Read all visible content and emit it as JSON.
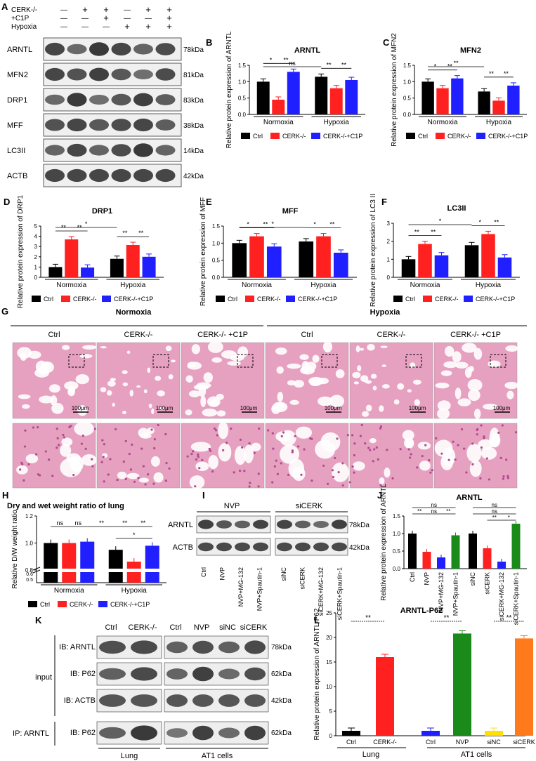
{
  "colors": {
    "ctrl": "#000000",
    "cerk": "#ff2020",
    "c1p": "#1f1fff",
    "nvp": "#1a8a1a",
    "siCERK": "#ff7a1a",
    "band": "#2a2a2a",
    "tissue": "#e6a0c0",
    "tissue_dark": "#b04b8e"
  },
  "panel_A": {
    "letter": "A",
    "conditions": [
      {
        "label": "CERK-/-",
        "marks": [
          "—",
          "+",
          "+",
          "—",
          "+",
          "+"
        ]
      },
      {
        "label": "+C1P",
        "marks": [
          "—",
          "—",
          "+",
          "—",
          "—",
          "+"
        ]
      },
      {
        "label": "Hypoxia",
        "marks": [
          "—",
          "—",
          "—",
          "+",
          "+",
          "+"
        ]
      }
    ],
    "blots": [
      {
        "name": "ARNTL",
        "kda": "78kDa",
        "levels": [
          0.85,
          0.55,
          0.95,
          0.85,
          0.6,
          0.8
        ]
      },
      {
        "name": "MFN2",
        "kda": "81kDa",
        "levels": [
          0.85,
          0.75,
          0.9,
          0.7,
          0.5,
          0.8
        ]
      },
      {
        "name": "DRP1",
        "kda": "83kDa",
        "levels": [
          0.55,
          0.95,
          0.5,
          0.7,
          0.9,
          0.65
        ]
      },
      {
        "name": "MFF",
        "kda": "38kDa",
        "levels": [
          0.75,
          0.85,
          0.7,
          0.8,
          0.85,
          0.65
        ]
      },
      {
        "name": "LC3II",
        "kda": "14kDa",
        "levels": [
          0.6,
          0.85,
          0.6,
          0.8,
          0.95,
          0.6
        ]
      },
      {
        "name": "ACTB",
        "kda": "42kDa",
        "levels": [
          0.85,
          0.85,
          0.85,
          0.85,
          0.85,
          0.85
        ]
      }
    ]
  },
  "legend_ABC": {
    "ctrl": "Ctrl",
    "cerk": "CERK-/-",
    "c1p": "CERK-/-+C1P"
  },
  "chart_data": [
    {
      "panel": "B",
      "type": "bar",
      "title": "ARNTL",
      "ylabel": "Relative protein expression of ARNTL",
      "groups": [
        "Normoxia",
        "Hypoxia"
      ],
      "ylim": [
        0,
        1.5
      ],
      "yticks": [
        "0.0",
        "0.5",
        "1.0",
        "1.5"
      ],
      "series": [
        {
          "name": "Ctrl",
          "values": [
            1.0,
            1.15
          ]
        },
        {
          "name": "CERK-/-",
          "values": [
            0.45,
            0.8
          ]
        },
        {
          "name": "CERK-/-+C1P",
          "values": [
            1.3,
            1.05
          ]
        }
      ],
      "sig": [
        {
          "g": 0,
          "a": 0,
          "b": 1,
          "t": "*",
          "lvl": 0
        },
        {
          "g": 0,
          "a": 1,
          "b": 2,
          "t": "**",
          "lvl": 0
        },
        {
          "g": 1,
          "a": 0,
          "b": 1,
          "t": "**",
          "lvl": 0
        },
        {
          "g": 1,
          "a": 1,
          "b": 2,
          "t": "**",
          "lvl": 0
        },
        {
          "g": -1,
          "a": 0,
          "b": 3,
          "t": "ns",
          "lvl": 1
        }
      ]
    },
    {
      "panel": "C",
      "type": "bar",
      "title": "MFN2",
      "ylabel": "Relative protein expression of MFN2",
      "groups": [
        "Normoxia",
        "Hypoxia"
      ],
      "ylim": [
        0,
        1.5
      ],
      "yticks": [
        "0.0",
        "0.5",
        "1.0",
        "1.5"
      ],
      "series": [
        {
          "name": "Ctrl",
          "values": [
            1.0,
            0.7
          ]
        },
        {
          "name": "CERK-/-",
          "values": [
            0.8,
            0.42
          ]
        },
        {
          "name": "CERK-/-+C1P",
          "values": [
            1.1,
            0.88
          ]
        }
      ],
      "sig": [
        {
          "g": 0,
          "a": 0,
          "b": 1,
          "t": "*",
          "lvl": 0
        },
        {
          "g": 0,
          "a": 1,
          "b": 2,
          "t": "**",
          "lvl": 0
        },
        {
          "g": 1,
          "a": 0,
          "b": 1,
          "t": "**",
          "lvl": 0
        },
        {
          "g": 1,
          "a": 1,
          "b": 2,
          "t": "**",
          "lvl": 0
        },
        {
          "g": -1,
          "a": 0,
          "b": 3,
          "t": "**",
          "lvl": 1
        }
      ]
    },
    {
      "panel": "D",
      "type": "bar",
      "title": "DRP1",
      "ylabel": "Relative protein expression of DRP1",
      "groups": [
        "Normoxia",
        "Hypoxia"
      ],
      "ylim": [
        0,
        5
      ],
      "yticks": [
        "0",
        "1",
        "2",
        "3",
        "4",
        "5"
      ],
      "series": [
        {
          "name": "Ctrl",
          "values": [
            1.0,
            1.8
          ]
        },
        {
          "name": "CERK-/-",
          "values": [
            3.7,
            3.15
          ]
        },
        {
          "name": "CERK-/-+C1P",
          "values": [
            0.95,
            2.0
          ]
        }
      ],
      "sig": [
        {
          "g": 0,
          "a": 0,
          "b": 1,
          "t": "**",
          "lvl": 0
        },
        {
          "g": 0,
          "a": 1,
          "b": 2,
          "t": "**",
          "lvl": 0
        },
        {
          "g": 1,
          "a": 0,
          "b": 1,
          "t": "**",
          "lvl": 0
        },
        {
          "g": 1,
          "a": 1,
          "b": 2,
          "t": "**",
          "lvl": 0
        },
        {
          "g": -1,
          "a": 0,
          "b": 3,
          "t": "*",
          "lvl": 1
        }
      ]
    },
    {
      "panel": "E",
      "type": "bar",
      "title": "MFF",
      "ylabel": "Relative protein expression of MFF",
      "groups": [
        "Normoxia",
        "Hypoxia"
      ],
      "ylim": [
        0,
        1.5
      ],
      "yticks": [
        "0.0",
        "0.5",
        "1.0",
        "1.5"
      ],
      "series": [
        {
          "name": "Ctrl",
          "values": [
            1.0,
            1.05
          ]
        },
        {
          "name": "CERK-/-",
          "values": [
            1.2,
            1.2
          ]
        },
        {
          "name": "CERK-/-+C1P",
          "values": [
            0.9,
            0.72
          ]
        }
      ],
      "sig": [
        {
          "g": 0,
          "a": 0,
          "b": 1,
          "t": "*",
          "lvl": 0
        },
        {
          "g": 0,
          "a": 1,
          "b": 2,
          "t": "**",
          "lvl": 0
        },
        {
          "g": 1,
          "a": 0,
          "b": 1,
          "t": "*",
          "lvl": 0
        },
        {
          "g": 1,
          "a": 1,
          "b": 2,
          "t": "**",
          "lvl": 0
        },
        {
          "g": -1,
          "a": 0,
          "b": 3,
          "t": "*",
          "lvl": 1
        }
      ]
    },
    {
      "panel": "F",
      "type": "bar",
      "title": "LC3II",
      "ylabel": "Relative protein expression of LC3 II",
      "groups": [
        "Normoxia",
        "Hypoxia"
      ],
      "ylim": [
        0,
        3
      ],
      "yticks": [
        "0",
        "1",
        "2",
        "3"
      ],
      "series": [
        {
          "name": "Ctrl",
          "values": [
            1.0,
            1.78
          ]
        },
        {
          "name": "CERK-/-",
          "values": [
            1.85,
            2.4
          ]
        },
        {
          "name": "CERK-/-+C1P",
          "values": [
            1.22,
            1.1
          ]
        }
      ],
      "sig": [
        {
          "g": 0,
          "a": 0,
          "b": 1,
          "t": "**",
          "lvl": 0
        },
        {
          "g": 0,
          "a": 1,
          "b": 2,
          "t": "**",
          "lvl": 0
        },
        {
          "g": 1,
          "a": 0,
          "b": 1,
          "t": "*",
          "lvl": 0
        },
        {
          "g": 1,
          "a": 1,
          "b": 2,
          "t": "**",
          "lvl": 0
        },
        {
          "g": -1,
          "a": 0,
          "b": 3,
          "t": "*",
          "lvl": 1
        }
      ]
    },
    {
      "panel": "H",
      "type": "bar",
      "title": "Dry and wet weight ratio of lung",
      "ylabel": "Relative D/W weight ratio",
      "groups": [
        "Normoxia",
        "Hypoxia"
      ],
      "yticks": [
        "0.5",
        "0.6",
        "0.8",
        "1.0",
        "1.2"
      ],
      "series": [
        {
          "name": "Ctrl",
          "values": [
            1.0,
            0.95
          ]
        },
        {
          "name": "CERK-/-",
          "values": [
            1.0,
            0.73
          ]
        },
        {
          "name": "CERK-/-+C1P",
          "values": [
            1.01,
            0.98
          ]
        }
      ],
      "sig": [
        "ns",
        "ns",
        "**",
        "**",
        "**",
        "*"
      ]
    },
    {
      "panel": "J",
      "type": "bar",
      "title": "ARNTL",
      "ylabel": "Relative protein expression of ARNTL",
      "yticks": [
        "0.0",
        "0.5",
        "1.0",
        "1.5"
      ],
      "ylim": [
        0,
        1.5
      ],
      "categories": [
        "Ctrl",
        "NVP",
        "NVP+MG-132",
        "NVP+Spautin-1",
        "siNC",
        "siCERK",
        "siCERK+MG-132",
        "siCERK+Spautin-1"
      ],
      "values": [
        1.0,
        0.48,
        0.32,
        0.95,
        1.0,
        0.58,
        0.2,
        1.28
      ],
      "sig": [
        "ns",
        "**",
        "ns",
        "**",
        "ns",
        "ns",
        "**",
        "*"
      ]
    },
    {
      "panel": "L",
      "type": "bar",
      "title": "ARNTL-P62",
      "ylabel": "Relative protein expression of ARNTL-P62",
      "ylim": [
        0,
        25
      ],
      "yticks": [
        "0",
        "5",
        "10",
        "15",
        "20",
        "25"
      ],
      "categories": [
        "Ctrl",
        "CERK-/-",
        "Ctrl",
        "NVP",
        "siNC",
        "siCERK"
      ],
      "values": [
        1.0,
        16.0,
        1.0,
        20.8,
        1.0,
        19.8
      ],
      "groups": [
        "Lung",
        "AT1 cells"
      ],
      "sig": [
        "**",
        "**",
        "**"
      ]
    }
  ],
  "panel_G": {
    "letter": "G",
    "left_group": "Normoxia",
    "right_group": "Hypoxia",
    "columns": [
      "Ctrl",
      "CERK-/-",
      "CERK-/- +C1P",
      "Ctrl",
      "CERK-/-",
      "CERK-/- +C1P"
    ],
    "scalebar": "100μm"
  },
  "panel_I": {
    "letter": "I",
    "group1": "NVP",
    "group2": "siCERK",
    "rows": [
      {
        "name": "ARNTL",
        "kda": "78kDa"
      },
      {
        "name": "ACTB",
        "kda": "42kDa"
      }
    ],
    "lanes": [
      "Ctrl",
      "NVP",
      "NVP+MG-132",
      "NVP+Spautin-1",
      "siNC",
      "siCERK",
      "siCERK+MG-132",
      "siCERK+Spautin-1"
    ]
  },
  "panel_K": {
    "letter": "K",
    "lanes_left": [
      "Ctrl",
      "CERK-/-"
    ],
    "lanes_right": [
      "Ctrl",
      "NVP",
      "siNC",
      "siCERK"
    ],
    "input_label": "input",
    "ip_label": "IP: ARNTL",
    "rows": [
      {
        "ib": "IB: ARNTL",
        "kda": "78kDa"
      },
      {
        "ib": "IB: P62",
        "kda": "62kDa"
      },
      {
        "ib": "IB: ACTB",
        "kda": "42kDa"
      },
      {
        "ib": "IB: P62",
        "kda": "62kDa"
      }
    ],
    "footer_left": "Lung",
    "footer_right": "AT1 cells"
  }
}
